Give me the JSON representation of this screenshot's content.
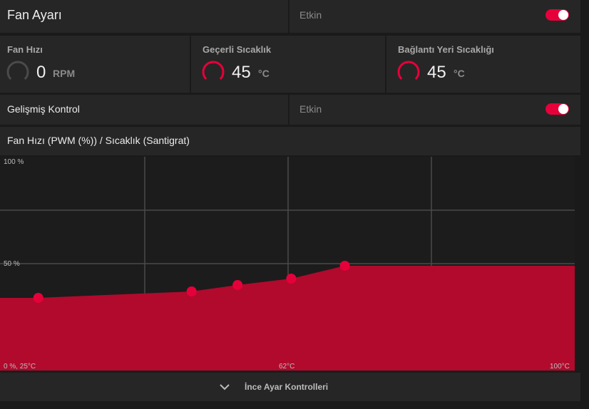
{
  "fan_setting": {
    "title": "Fan Ayarı",
    "status": "Etkin",
    "enabled": true
  },
  "stats": {
    "fan_speed": {
      "label": "Fan Hızı",
      "value": "0",
      "unit": "RPM"
    },
    "current_temp": {
      "label": "Geçerli Sıcaklık",
      "value": "45",
      "unit": "°C"
    },
    "junction_temp": {
      "label": "Bağlantı Yeri Sıcaklığı",
      "value": "45",
      "unit": "°C"
    }
  },
  "advanced_control": {
    "title": "Gelişmiş Kontrol",
    "status": "Etkin",
    "enabled": true
  },
  "chart_header": {
    "title": "Fan Hızı (PWM (%)) / Sıcaklık (Santigrat)"
  },
  "chart_data": {
    "type": "area",
    "title": "Fan Hızı (PWM (%)) / Sıcaklık (Santigrat)",
    "xlabel": "",
    "ylabel": "",
    "xlim": [
      25,
      100
    ],
    "ylim": [
      0,
      100
    ],
    "grid": true,
    "tick_labels": {
      "y_top": "100 %",
      "y_mid": "50 %",
      "origin": "0 %, 25°C",
      "x_mid": "62°C",
      "x_max": "100°C"
    },
    "series": [
      {
        "points": [
          {
            "x": 30,
            "y": 34
          },
          {
            "x": 50,
            "y": 37
          },
          {
            "x": 56,
            "y": 40
          },
          {
            "x": 63,
            "y": 43
          },
          {
            "x": 70,
            "y": 49
          }
        ]
      }
    ],
    "colors": {
      "fill": "#b10a2d",
      "point": "#e6003a",
      "grid": "#4a4a4a",
      "background": "#1c1c1c"
    }
  },
  "footer": {
    "label": "İnce Ayar Kontrolleri",
    "icon": "chevron-down-icon"
  },
  "colors": {
    "accent": "#e6003a",
    "panel": "#262626",
    "bg": "#1a1a1a"
  }
}
